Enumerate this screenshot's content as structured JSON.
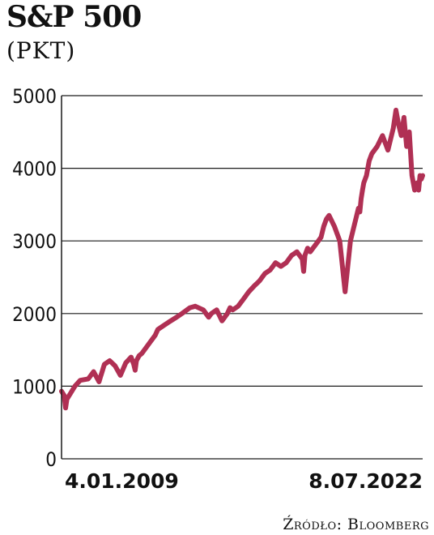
{
  "header": {
    "title": "S&P 500",
    "unit": "(PKT)"
  },
  "source": "Źródło: Bloomberg",
  "colors": {
    "line": "#b03054",
    "grid": "#1a1a1a",
    "text": "#111111"
  },
  "chart_data": {
    "type": "line",
    "title": "S&P 500",
    "ylabel": "(PKT)",
    "ylim": [
      0,
      5000
    ],
    "yticks": [
      0,
      1000,
      2000,
      3000,
      4000,
      5000
    ],
    "xlim": [
      0,
      13.5
    ],
    "xtick_labels": [
      {
        "x": 0.0,
        "label": "4.01.2009"
      },
      {
        "x": 13.5,
        "label": "8.07.2022"
      }
    ],
    "grid": true,
    "series": [
      {
        "name": "",
        "x": [
          0.0,
          0.1,
          0.15,
          0.2,
          0.3,
          0.5,
          0.7,
          1.0,
          1.2,
          1.4,
          1.45,
          1.5,
          1.6,
          1.8,
          2.0,
          2.2,
          2.4,
          2.6,
          2.7,
          2.75,
          2.8,
          2.9,
          3.0,
          3.2,
          3.3,
          3.5,
          3.6,
          3.8,
          4.0,
          4.3,
          4.5,
          4.8,
          5.0,
          5.3,
          5.5,
          5.6,
          5.8,
          6.0,
          6.2,
          6.3,
          6.4,
          6.6,
          6.7,
          6.8,
          7.0,
          7.2,
          7.4,
          7.6,
          7.8,
          8.0,
          8.2,
          8.4,
          8.6,
          8.8,
          9.0,
          9.05,
          9.1,
          9.2,
          9.3,
          9.4,
          9.5,
          9.6,
          9.7,
          9.8,
          9.9,
          10.0,
          10.2,
          10.4,
          10.6,
          10.8,
          11.0,
          11.1,
          11.15,
          11.2,
          11.25,
          11.3,
          11.4,
          11.5,
          11.6,
          11.8,
          12.0,
          12.2,
          12.4,
          12.5,
          12.6,
          12.7,
          12.8,
          12.9,
          13.0,
          13.1,
          13.2,
          13.3,
          13.35,
          13.4,
          13.45,
          13.5
        ],
        "values": [
          930,
          870,
          700,
          820,
          880,
          1000,
          1080,
          1100,
          1200,
          1060,
          1120,
          1180,
          1300,
          1350,
          1280,
          1150,
          1320,
          1400,
          1300,
          1220,
          1350,
          1420,
          1450,
          1550,
          1600,
          1700,
          1780,
          1830,
          1880,
          1950,
          2000,
          2080,
          2100,
          2050,
          1950,
          2000,
          2050,
          1900,
          2000,
          2080,
          2050,
          2100,
          2150,
          2200,
          2300,
          2380,
          2450,
          2550,
          2600,
          2700,
          2650,
          2700,
          2800,
          2850,
          2750,
          2580,
          2800,
          2900,
          2850,
          2900,
          2950,
          3000,
          3050,
          3200,
          3300,
          3350,
          3200,
          3000,
          2300,
          3000,
          3300,
          3450,
          3400,
          3580,
          3700,
          3800,
          3900,
          4100,
          4200,
          4300,
          4450,
          4250,
          4550,
          4800,
          4600,
          4450,
          4700,
          4300,
          4500,
          3900,
          3700,
          3800,
          3700,
          3900,
          3850,
          3900
        ]
      }
    ]
  }
}
